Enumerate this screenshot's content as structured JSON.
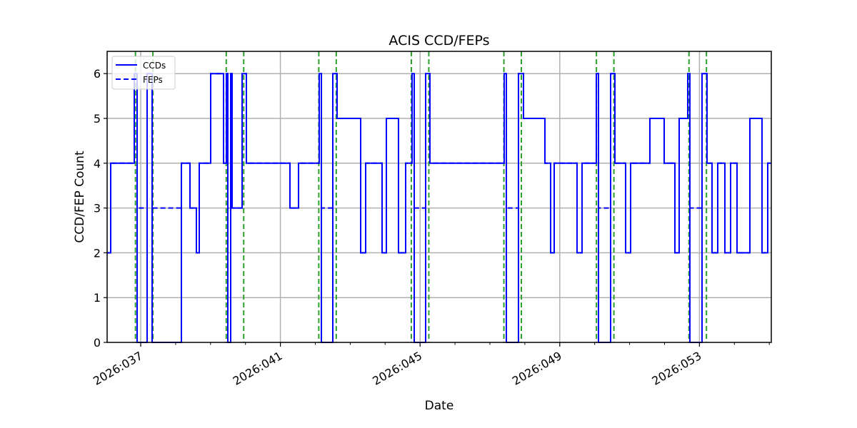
{
  "chart_data": {
    "type": "line",
    "title": "ACIS CCD/FEPs",
    "xlabel": "Date",
    "ylabel": "CCD/FEP Count",
    "ylim": [
      0,
      6.5
    ],
    "yticks": [
      "0",
      "1",
      "2",
      "3",
      "4",
      "5",
      "6"
    ],
    "xticks": [
      "2026:037",
      "2026:041",
      "2026:045",
      "2026:049",
      "2026:053"
    ],
    "grid": true,
    "legend": {
      "position": "upper left",
      "entries": [
        "CCDs",
        "FEPs"
      ]
    },
    "colors": {
      "ccds": "#0000ff",
      "feps": "#0000ff",
      "vlines": "#2ca02c",
      "grid": "#b0b0b0"
    },
    "series": [
      {
        "name": "CCDs",
        "style": "solid",
        "description": "step series alternating between 0,2,3,4,5,6 counts"
      },
      {
        "name": "FEPs",
        "style": "dashed",
        "description": "step series mostly overlapping CCDs; stays at 3 where CCDs drop to 0"
      }
    ],
    "vertical_markers_day_of_year": [
      36.85,
      37.35,
      39.45,
      39.95,
      42.1,
      42.6,
      44.75,
      45.25,
      47.4,
      47.9,
      50.05,
      50.55,
      52.7,
      53.2
    ]
  }
}
